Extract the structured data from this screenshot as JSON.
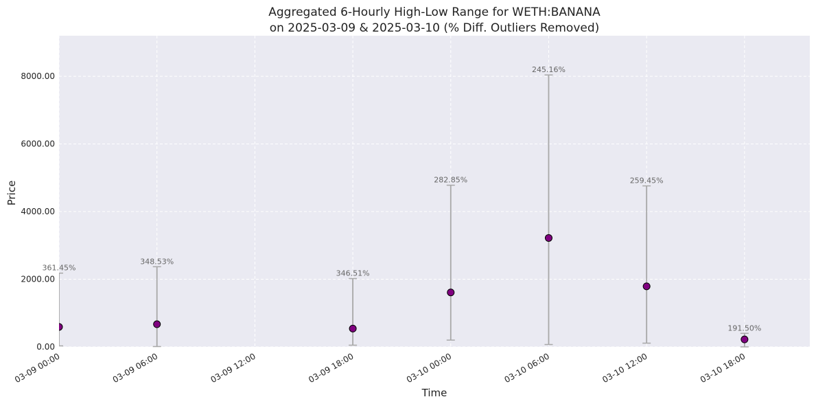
{
  "chart_data": {
    "type": "scatter",
    "title": "Aggregated 6-Hourly High-Low Range for WETH:BANANA",
    "subtitle": "on 2025-03-09 & 2025-03-10 (% Diff. Outliers Removed)",
    "xlabel": "Time",
    "ylabel": "Price",
    "xlim_hours": [
      0,
      46
    ],
    "ylim": [
      0,
      9200
    ],
    "yticks": [
      0,
      2000,
      4000,
      6000,
      8000
    ],
    "ytick_labels": [
      "0.00",
      "2000.00",
      "4000.00",
      "6000.00",
      "8000.00"
    ],
    "xticks_hours": [
      0,
      6,
      12,
      18,
      24,
      30,
      36,
      42
    ],
    "xtick_labels": [
      "03-09 00:00",
      "03-09 06:00",
      "03-09 12:00",
      "03-09 18:00",
      "03-10 00:00",
      "03-10 06:00",
      "03-10 12:00",
      "03-10 18:00"
    ],
    "grid": true,
    "marker_color": "#800080",
    "errorbar_color": "#a8a8a8",
    "points": [
      {
        "x_hours": 0,
        "y": 590,
        "low": 30,
        "high": 2180,
        "label": "361.45%"
      },
      {
        "x_hours": 6,
        "y": 670,
        "low": 10,
        "high": 2370,
        "label": "348.53%"
      },
      {
        "x_hours": 18,
        "y": 540,
        "low": 50,
        "high": 2020,
        "label": "346.51%"
      },
      {
        "x_hours": 24,
        "y": 1610,
        "low": 200,
        "high": 4780,
        "label": "282.85%"
      },
      {
        "x_hours": 30,
        "y": 3220,
        "low": 70,
        "high": 8040,
        "label": "245.16%"
      },
      {
        "x_hours": 36,
        "y": 1790,
        "low": 110,
        "high": 4760,
        "label": "259.45%"
      },
      {
        "x_hours": 42,
        "y": 220,
        "low": 0,
        "high": 400,
        "label": "191.50%"
      }
    ]
  }
}
